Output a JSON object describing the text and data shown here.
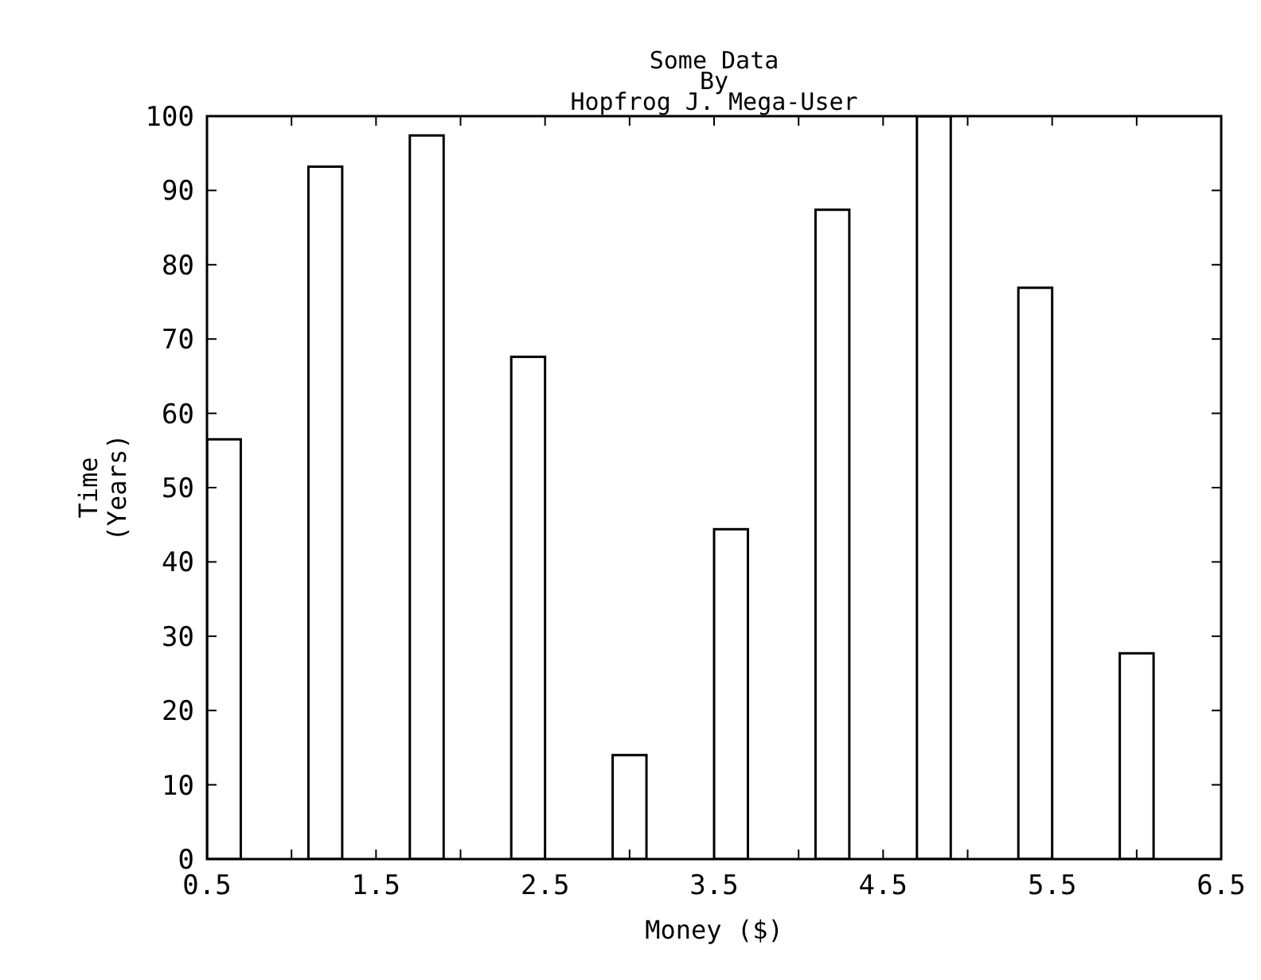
{
  "chart_data": {
    "type": "bar",
    "title": "Some Data\nBy\nHopfrog J. Mega-User",
    "xlabel": "Money ($)",
    "ylabel": "Time\n(Years)",
    "x": [
      0.6,
      1.2,
      1.8,
      2.4,
      3.0,
      3.6,
      4.2,
      4.8,
      5.4,
      6.0
    ],
    "values": [
      56.5,
      93.2,
      97.4,
      67.6,
      14.0,
      44.4,
      87.4,
      100,
      76.9,
      27.7
    ],
    "color": "#ffffff",
    "xlim": [
      0.5,
      6.5
    ],
    "xticks": [
      0.5,
      {
        "value": 1,
        "label": null
      },
      1.5,
      {
        "value": 2,
        "label": null
      },
      2.5,
      {
        "value": 3,
        "label": null
      },
      3.5,
      {
        "value": 4,
        "label": null
      },
      4.5,
      {
        "value": 5,
        "label": null
      },
      5.5,
      {
        "value": 6,
        "label": null
      },
      6.5
    ],
    "ylim": [
      0,
      100
    ],
    "yticks": [
      0,
      10,
      20,
      30,
      40,
      50,
      60,
      70,
      80,
      90,
      100
    ],
    "grid": false
  }
}
